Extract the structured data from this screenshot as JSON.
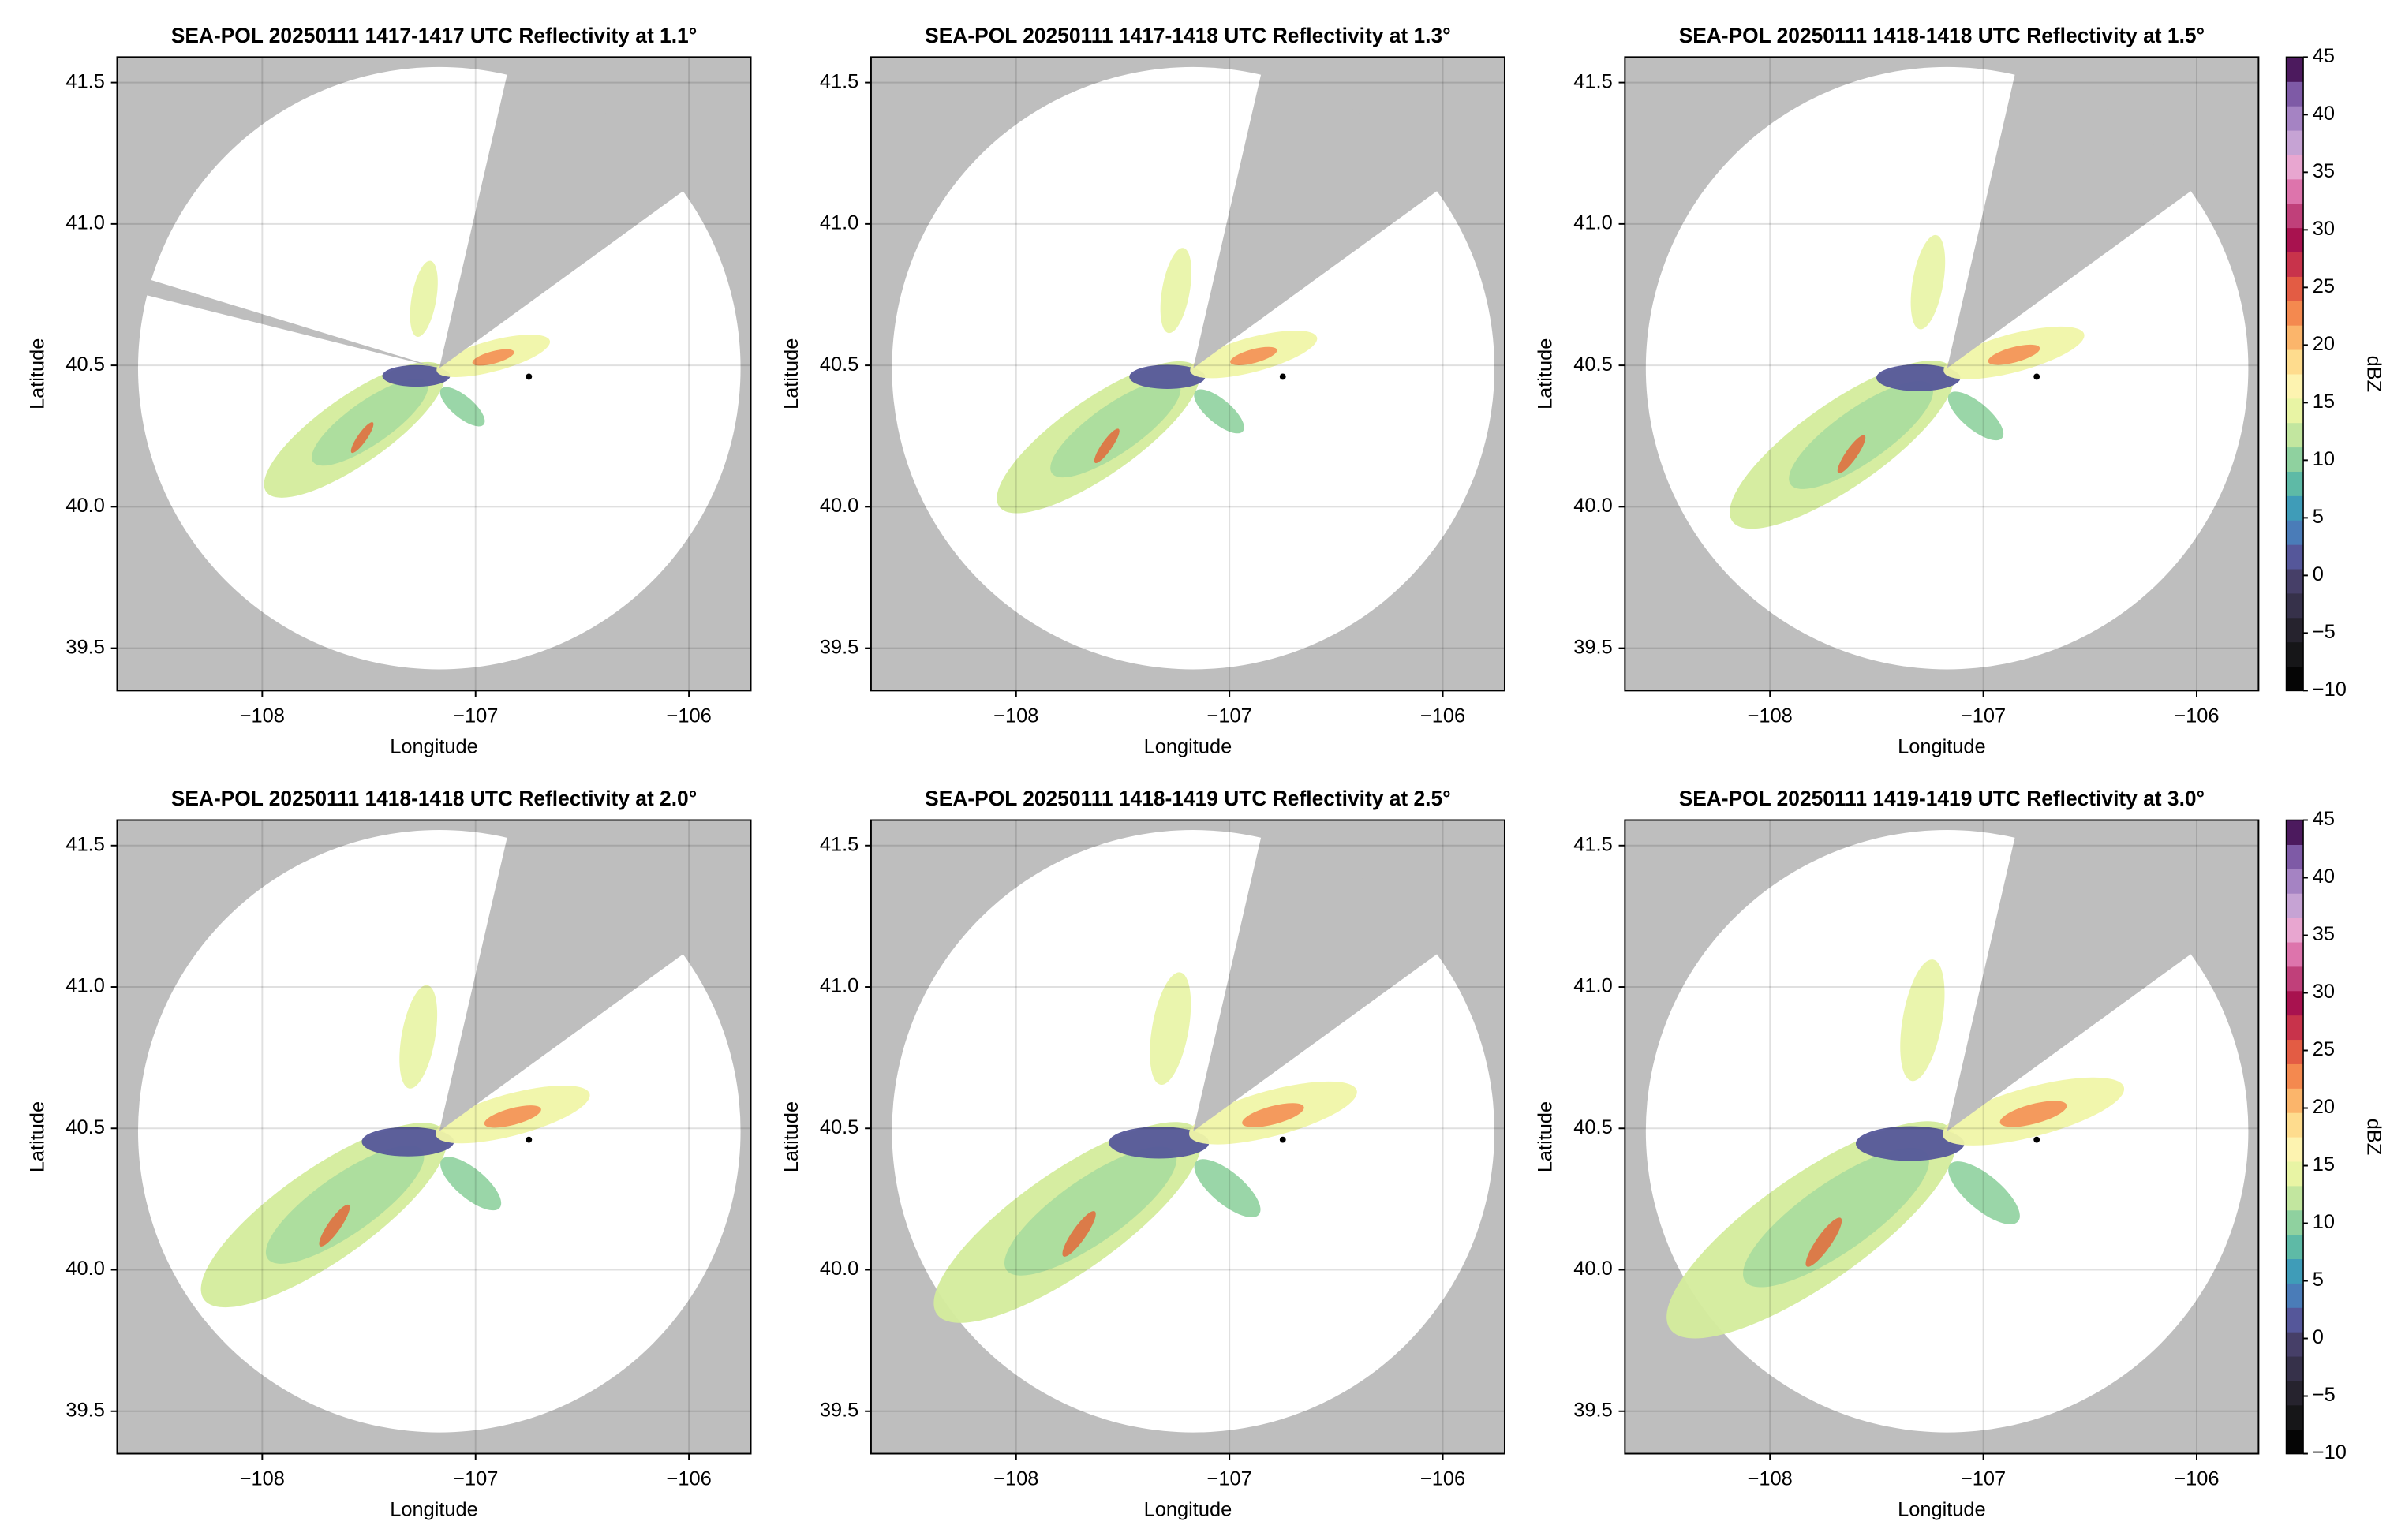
{
  "chart_data": [
    {
      "type": "radar",
      "title": "SEA-POL 20250111 1417-1417 UTC Reflectivity at 1.1°",
      "x_label": "Longitude",
      "y_label": "Latitude",
      "xlim": [
        -108.68,
        -105.71
      ],
      "ylim": [
        39.35,
        41.59
      ],
      "xticks": [
        {
          "value": -108,
          "label": "−108"
        },
        {
          "value": -107,
          "label": "−107"
        },
        {
          "value": -106,
          "label": "−106"
        }
      ],
      "yticks": [
        39.5,
        {
          "value": 40.0,
          "label": "40.0"
        },
        40.5,
        {
          "value": 41.0,
          "label": "41.0"
        },
        41.5
      ],
      "grid": true,
      "radar_center": {
        "x": -107.17,
        "y": 40.49
      },
      "range_lat": 1.065,
      "blocked_sectors": [
        [
          13,
          54
        ],
        [
          284,
          287
        ]
      ],
      "site": {
        "x": -106.75,
        "y": 40.46
      }
    },
    {
      "type": "radar",
      "title": "SEA-POL 20250111 1417-1418 UTC Reflectivity at 1.3°",
      "x_label": "Longitude",
      "y_label": "Latitude",
      "xlim": [
        -108.68,
        -105.71
      ],
      "ylim": [
        39.35,
        41.59
      ],
      "xticks": [
        {
          "value": -108,
          "label": "−108"
        },
        {
          "value": -107,
          "label": "−107"
        },
        {
          "value": -106,
          "label": "−106"
        }
      ],
      "yticks": [
        39.5,
        {
          "value": 40.0,
          "label": "40.0"
        },
        40.5,
        {
          "value": 41.0,
          "label": "41.0"
        },
        41.5
      ],
      "grid": true,
      "radar_center": {
        "x": -107.17,
        "y": 40.49
      },
      "range_lat": 1.065,
      "blocked_sectors": [
        [
          13,
          54
        ]
      ],
      "site": {
        "x": -106.75,
        "y": 40.46
      }
    },
    {
      "type": "radar",
      "title": "SEA-POL 20250111 1418-1418 UTC Reflectivity at 1.5°",
      "x_label": "Longitude",
      "y_label": "Latitude",
      "xlim": [
        -108.68,
        -105.71
      ],
      "ylim": [
        39.35,
        41.59
      ],
      "xticks": [
        {
          "value": -108,
          "label": "−108"
        },
        {
          "value": -107,
          "label": "−107"
        },
        {
          "value": -106,
          "label": "−106"
        }
      ],
      "yticks": [
        39.5,
        {
          "value": 40.0,
          "label": "40.0"
        },
        40.5,
        {
          "value": 41.0,
          "label": "41.0"
        },
        41.5
      ],
      "grid": true,
      "radar_center": {
        "x": -107.17,
        "y": 40.49
      },
      "range_lat": 1.065,
      "blocked_sectors": [
        [
          13,
          54
        ]
      ],
      "site": {
        "x": -106.75,
        "y": 40.46
      },
      "colorbar": {
        "label": "dBZ",
        "lim": [
          -10,
          45
        ],
        "ticks": [
          {
            "value": -10,
            "label": "−10"
          },
          {
            "value": -5,
            "label": "−5"
          },
          0,
          5,
          10,
          15,
          20,
          25,
          30,
          35,
          40,
          45
        ],
        "colors": [
          "#050505",
          "#161618",
          "#26232e",
          "#36314a",
          "#463f68",
          "#55579a",
          "#4a7cb8",
          "#3f9cb8",
          "#5ebaa6",
          "#8fd19f",
          "#c2e69f",
          "#e8f4a4",
          "#fdf3b0",
          "#fedc8e",
          "#fbb56b",
          "#f4894f",
          "#e35c44",
          "#c8334b",
          "#a8124f",
          "#c0407a",
          "#dd74ac",
          "#e8a6d0",
          "#c6a3d4",
          "#a583c3",
          "#7e5aa6",
          "#4c1a5e"
        ]
      }
    },
    {
      "type": "radar",
      "title": "SEA-POL 20250111 1418-1418 UTC Reflectivity at 2.0°",
      "x_label": "Longitude",
      "y_label": "Latitude",
      "xlim": [
        -108.68,
        -105.71
      ],
      "ylim": [
        39.35,
        41.59
      ],
      "xticks": [
        {
          "value": -108,
          "label": "−108"
        },
        {
          "value": -107,
          "label": "−107"
        },
        {
          "value": -106,
          "label": "−106"
        }
      ],
      "yticks": [
        39.5,
        {
          "value": 40.0,
          "label": "40.0"
        },
        40.5,
        {
          "value": 41.0,
          "label": "41.0"
        },
        41.5
      ],
      "grid": true,
      "radar_center": {
        "x": -107.17,
        "y": 40.49
      },
      "range_lat": 1.065,
      "blocked_sectors": [
        [
          13,
          54
        ]
      ],
      "site": {
        "x": -106.75,
        "y": 40.46
      }
    },
    {
      "type": "radar",
      "title": "SEA-POL 20250111 1418-1419 UTC Reflectivity at 2.5°",
      "x_label": "Longitude",
      "y_label": "Latitude",
      "xlim": [
        -108.68,
        -105.71
      ],
      "ylim": [
        39.35,
        41.59
      ],
      "xticks": [
        {
          "value": -108,
          "label": "−108"
        },
        {
          "value": -107,
          "label": "−107"
        },
        {
          "value": -106,
          "label": "−106"
        }
      ],
      "yticks": [
        39.5,
        {
          "value": 40.0,
          "label": "40.0"
        },
        40.5,
        {
          "value": 41.0,
          "label": "41.0"
        },
        41.5
      ],
      "grid": true,
      "radar_center": {
        "x": -107.17,
        "y": 40.49
      },
      "range_lat": 1.065,
      "blocked_sectors": [
        [
          13,
          54
        ]
      ],
      "site": {
        "x": -106.75,
        "y": 40.46
      }
    },
    {
      "type": "radar",
      "title": "SEA-POL 20250111 1419-1419 UTC Reflectivity at 3.0°",
      "x_label": "Longitude",
      "y_label": "Latitude",
      "xlim": [
        -108.68,
        -105.71
      ],
      "ylim": [
        39.35,
        41.59
      ],
      "xticks": [
        {
          "value": -108,
          "label": "−108"
        },
        {
          "value": -107,
          "label": "−107"
        },
        {
          "value": -106,
          "label": "−106"
        }
      ],
      "yticks": [
        39.5,
        {
          "value": 40.0,
          "label": "40.0"
        },
        40.5,
        {
          "value": 41.0,
          "label": "41.0"
        },
        41.5
      ],
      "grid": true,
      "radar_center": {
        "x": -107.17,
        "y": 40.49
      },
      "range_lat": 1.065,
      "blocked_sectors": [
        [
          13,
          54
        ]
      ],
      "site": {
        "x": -106.75,
        "y": 40.46
      },
      "colorbar": {
        "label": "dBZ",
        "lim": [
          -10,
          45
        ],
        "ticks": [
          {
            "value": -10,
            "label": "−10"
          },
          {
            "value": -5,
            "label": "−5"
          },
          0,
          5,
          10,
          15,
          20,
          25,
          30,
          35,
          40,
          45
        ],
        "colors": [
          "#050505",
          "#161618",
          "#26232e",
          "#36314a",
          "#463f68",
          "#55579a",
          "#4a7cb8",
          "#3f9cb8",
          "#5ebaa6",
          "#8fd19f",
          "#c2e69f",
          "#e8f4a4",
          "#fdf3b0",
          "#fedc8e",
          "#fbb56b",
          "#f4894f",
          "#e35c44",
          "#c8334b",
          "#a8124f",
          "#c0407a",
          "#dd74ac",
          "#e8a6d0",
          "#c6a3d4",
          "#a583c3",
          "#7e5aa6",
          "#4c1a5e"
        ]
      }
    }
  ]
}
